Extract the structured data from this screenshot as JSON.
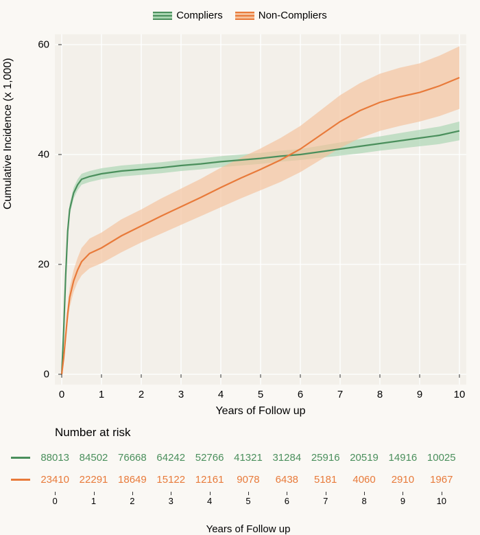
{
  "chart": {
    "type": "line",
    "background_color": "#faf8f4",
    "plot_background": "#f3f0ea",
    "grid_color": "#ffffff",
    "xlabel": "Years of Follow up",
    "ylabel": "Cumulative Incidence (x 1,000)",
    "label_fontsize": 16,
    "tick_fontsize": 15,
    "xlim": [
      0,
      10
    ],
    "ylim": [
      0,
      60
    ],
    "xtick_step": 1,
    "ytick_step": 20,
    "xticks": [
      0,
      1,
      2,
      3,
      4,
      5,
      6,
      7,
      8,
      9,
      10
    ],
    "yticks": [
      0,
      20,
      40,
      60
    ],
    "legend": {
      "position": "top-center",
      "items": [
        {
          "label": "Compliers",
          "color": "#4a8f5c",
          "fill": "#a8d4b0"
        },
        {
          "label": "Non-Compliers",
          "color": "#e87a3a",
          "fill": "#f5c09a"
        }
      ]
    },
    "series": [
      {
        "name": "Compliers",
        "color": "#4a8f5c",
        "fill": "#a8d4b0",
        "fill_opacity": 0.65,
        "line_width": 2.2,
        "x": [
          0,
          0.05,
          0.1,
          0.15,
          0.2,
          0.3,
          0.4,
          0.5,
          0.7,
          1,
          1.5,
          2,
          2.5,
          3,
          3.5,
          4,
          4.5,
          5,
          5.5,
          6,
          6.5,
          7,
          7.5,
          8,
          8.5,
          9,
          9.5,
          10
        ],
        "y": [
          0,
          8,
          18,
          26,
          30,
          33,
          34.5,
          35.5,
          36,
          36.5,
          37,
          37.3,
          37.6,
          38,
          38.3,
          38.7,
          39,
          39.3,
          39.7,
          40,
          40.5,
          41,
          41.5,
          42,
          42.5,
          43,
          43.5,
          44.3
        ],
        "lo": [
          0,
          7,
          17,
          25,
          29,
          32,
          33.5,
          34.5,
          35,
          35.5,
          36,
          36.3,
          36.6,
          37,
          37.3,
          37.7,
          38,
          38.3,
          38.7,
          39,
          39.4,
          39.8,
          40.2,
          40.7,
          41.1,
          41.5,
          41.9,
          42.6
        ],
        "hi": [
          0,
          9,
          19,
          27,
          31,
          34,
          35.5,
          36.5,
          37,
          37.5,
          38,
          38.3,
          38.6,
          39,
          39.3,
          39.7,
          40,
          40.3,
          40.7,
          41,
          41.6,
          42.2,
          42.8,
          43.3,
          43.9,
          44.5,
          45.1,
          46
        ]
      },
      {
        "name": "Non-Compliers",
        "color": "#e87a3a",
        "fill": "#f5c09a",
        "fill_opacity": 0.65,
        "line_width": 2.2,
        "x": [
          0,
          0.05,
          0.1,
          0.15,
          0.2,
          0.3,
          0.4,
          0.5,
          0.7,
          1,
          1.5,
          2,
          2.5,
          3,
          3.5,
          4,
          4.5,
          5,
          5.5,
          6,
          6.5,
          7,
          7.5,
          8,
          8.5,
          9,
          9.5,
          10
        ],
        "y": [
          0,
          3,
          7,
          11,
          14,
          17,
          19,
          20.5,
          22,
          23,
          25.2,
          27,
          28.8,
          30.5,
          32.2,
          34,
          35.7,
          37.3,
          39,
          41,
          43.5,
          46,
          48,
          49.5,
          50.5,
          51.3,
          52.5,
          54
        ],
        "lo": [
          0,
          2.3,
          5.8,
          9.5,
          12.2,
          15,
          16.8,
          18,
          19.3,
          20.2,
          22.2,
          24,
          25.6,
          27.2,
          28.8,
          30.4,
          32,
          33.5,
          35,
          36.8,
          39,
          41.2,
          43,
          44.3,
          45.2,
          46,
          47,
          48.3
        ],
        "hi": [
          0,
          3.7,
          8.2,
          12.5,
          15.8,
          19,
          21.2,
          23,
          24.7,
          25.8,
          28.2,
          30,
          32,
          33.8,
          35.6,
          37.6,
          39.4,
          41.1,
          43,
          45.2,
          48,
          50.8,
          53,
          54.7,
          55.8,
          56.6,
          58,
          59.7
        ]
      }
    ]
  },
  "risk_table": {
    "title": "Number at risk",
    "xlabel": "Years of Follow up",
    "xticks": [
      0,
      1,
      2,
      3,
      4,
      5,
      6,
      7,
      8,
      9,
      10
    ],
    "rows": [
      {
        "color": "#4a8f5c",
        "values": [
          "88013",
          "84502",
          "76668",
          "64242",
          "52766",
          "41321",
          "31284",
          "25916",
          "20519",
          "14916",
          "10025"
        ]
      },
      {
        "color": "#e87a3a",
        "values": [
          "23410",
          "22291",
          "18649",
          "15122",
          "12161",
          "9078",
          "6438",
          "5181",
          "4060",
          "2910",
          "1967"
        ]
      }
    ]
  }
}
